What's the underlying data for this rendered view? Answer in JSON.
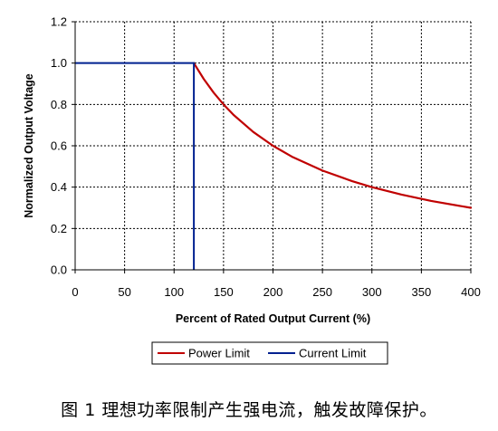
{
  "chart_data": {
    "type": "line",
    "title": "",
    "xlabel": "Percent of Rated Output Current (%)",
    "ylabel": "Normalized Output Voltage",
    "xlim": [
      0,
      400
    ],
    "ylim": [
      0,
      1.2
    ],
    "xticks": [
      0,
      50,
      100,
      150,
      200,
      250,
      300,
      350,
      400
    ],
    "yticks": [
      0.0,
      0.2,
      0.4,
      0.6,
      0.8,
      1.0,
      1.2
    ],
    "ytick_labels": [
      "0.0",
      "0.2",
      "0.4",
      "0.6",
      "0.8",
      "1.0",
      "1.2"
    ],
    "grid": true,
    "legend_position": "bottom-center",
    "series": [
      {
        "name": "Power Limit",
        "color": "#c00000",
        "x": [
          120,
          130,
          140,
          150,
          160,
          180,
          200,
          220,
          250,
          280,
          300,
          330,
          360,
          400
        ],
        "y": [
          1.0,
          0.923,
          0.857,
          0.8,
          0.75,
          0.667,
          0.6,
          0.545,
          0.48,
          0.429,
          0.4,
          0.364,
          0.333,
          0.3
        ]
      },
      {
        "name": "Current Limit",
        "color": "#002090",
        "x": [
          0,
          120,
          120
        ],
        "y": [
          1.0,
          1.0,
          0.0
        ]
      }
    ]
  },
  "caption": "图 1 理想功率限制产生强电流，触发故障保护。"
}
